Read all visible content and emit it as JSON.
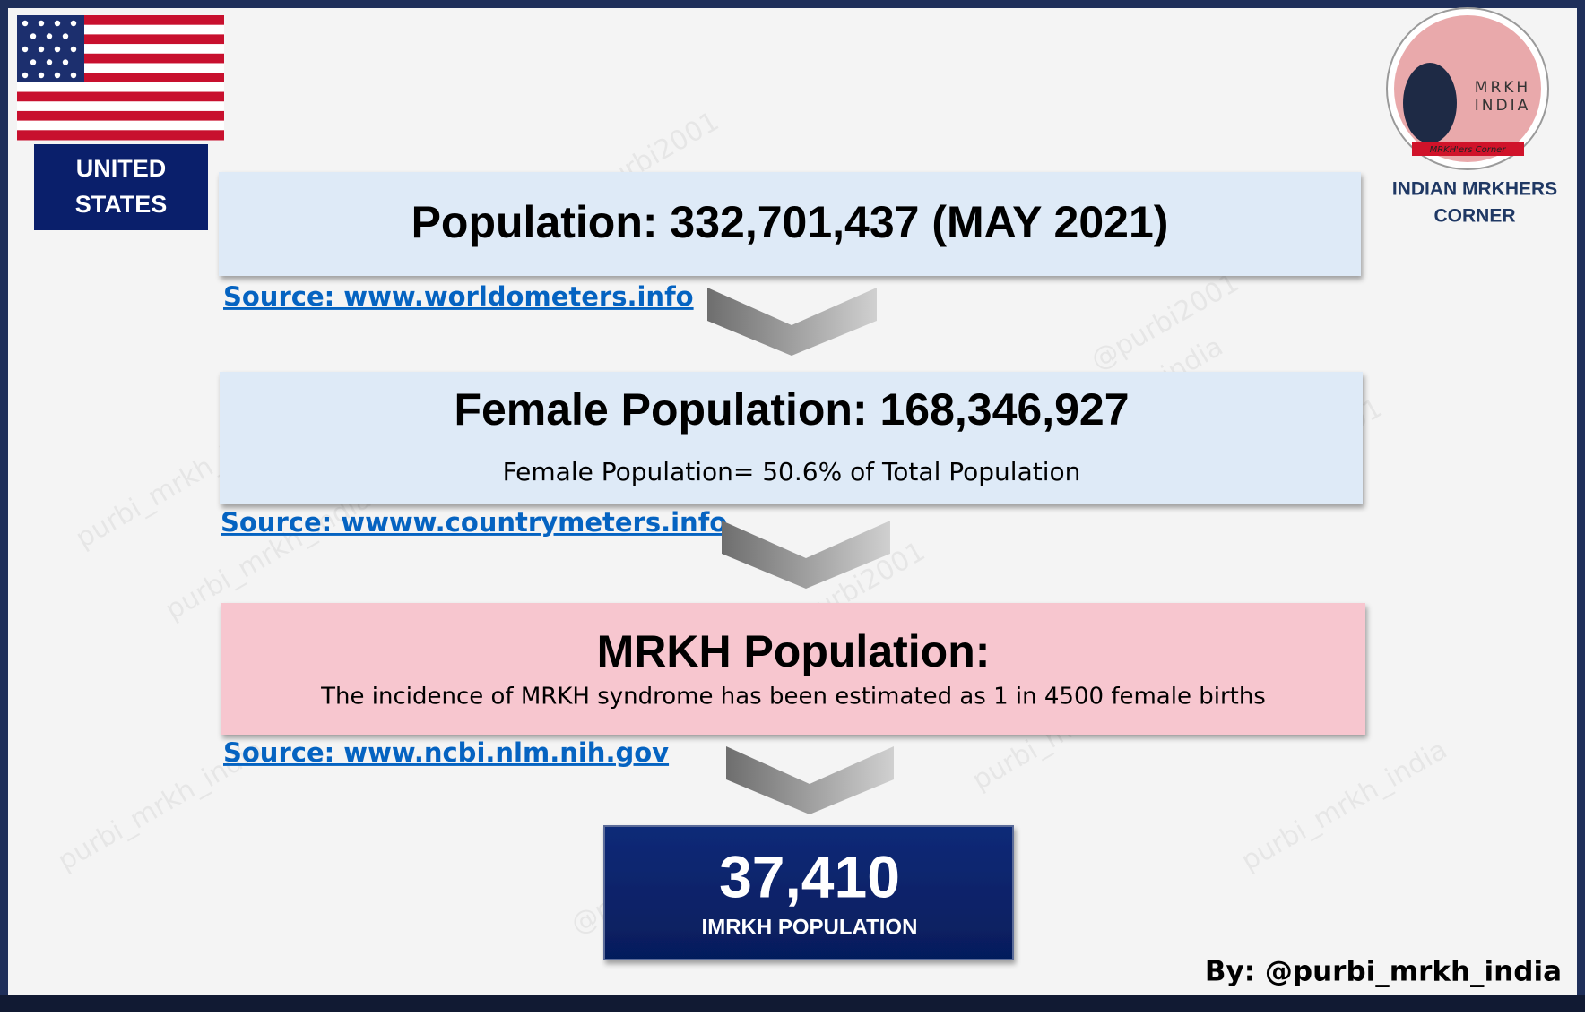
{
  "flag_label": [
    "UNITED",
    "STATES"
  ],
  "logo": {
    "name": [
      "MRKH",
      "INDIA"
    ],
    "banner": "MRKH'ers Corner",
    "caption": [
      "INDIAN MRKHERS",
      "CORNER"
    ]
  },
  "watermarks": [
    "purbi_mrkh_india",
    "@purbi2001"
  ],
  "steps": [
    {
      "title": "Population: 332,701,437 (MAY 2021)",
      "source": "Source: www.worldometers.info"
    },
    {
      "title": "Female Population: 168,346,927",
      "subtitle": "Female Population= 50.6% of Total Population",
      "source": "Source: wwww.countrymeters.info"
    },
    {
      "title": "MRKH Population:",
      "subtitle": "The incidence of MRKH syndrome has been estimated as 1 in 4500 female births",
      "source": "Source: www.ncbi.nlm.nih.gov"
    }
  ],
  "result": {
    "value": "37,410",
    "label": "IMRKH POPULATION"
  },
  "byline": "By: @purbi_mrkh_india"
}
